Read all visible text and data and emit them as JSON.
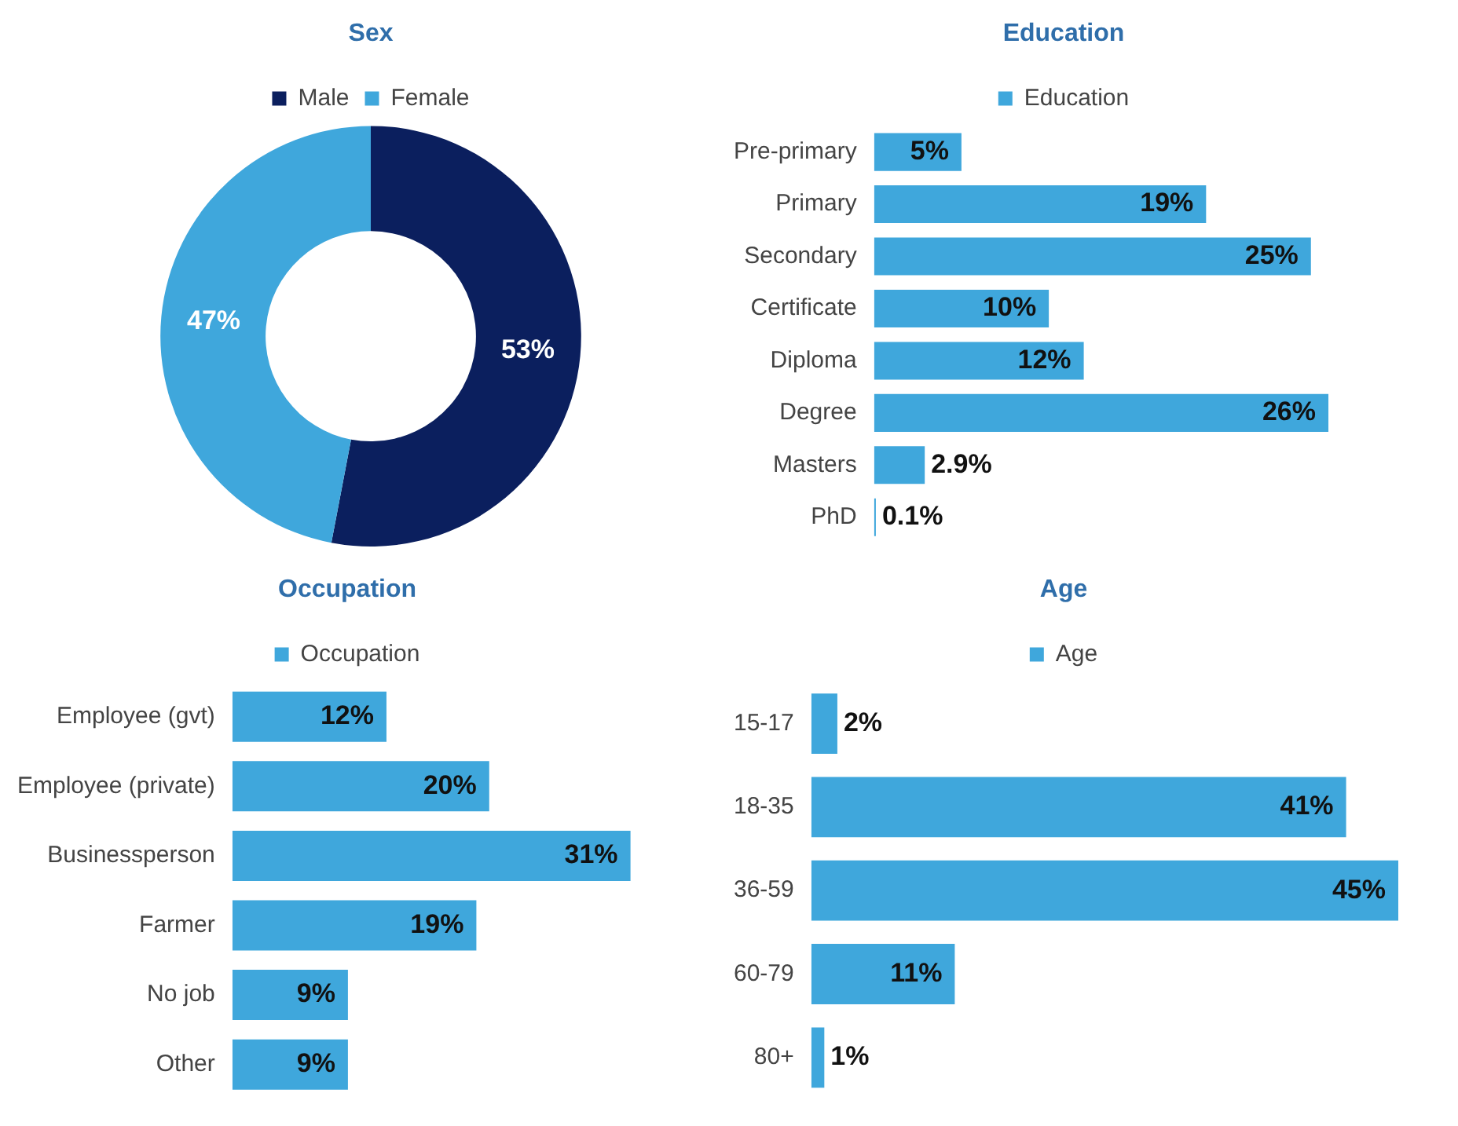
{
  "chart_data": [
    {
      "type": "donut",
      "title": "Sex",
      "categories": [
        "Male",
        "Female"
      ],
      "values": [
        53,
        47
      ],
      "colors": [
        "#0b1f5e",
        "#3fa7dc"
      ],
      "value_labels": [
        "53%",
        "47%"
      ],
      "legend": "top"
    },
    {
      "type": "bar",
      "orientation": "horizontal",
      "title": "Education",
      "categories": [
        "Pre-primary",
        "Primary",
        "Secondary",
        "Certificate",
        "Diploma",
        "Degree",
        "Masters",
        "PhD"
      ],
      "series": [
        {
          "name": "Education",
          "color": "#3fa7dc",
          "values": [
            5,
            19,
            25,
            10,
            12,
            26,
            2.9,
            0.1
          ],
          "value_labels": [
            "5%",
            "19%",
            "25%",
            "10%",
            "12%",
            "26%",
            "2.9%",
            "0.1%"
          ]
        }
      ],
      "legend": "top",
      "tick_labels": "y"
    },
    {
      "type": "bar",
      "orientation": "horizontal",
      "title": "Occupation",
      "categories": [
        "Employee (gvt)",
        "Employee (private)",
        "Businessperson",
        "Farmer",
        "No job",
        "Other"
      ],
      "series": [
        {
          "name": "Occupation",
          "color": "#3fa7dc",
          "values": [
            12,
            20,
            31,
            19,
            9,
            9
          ],
          "value_labels": [
            "12%",
            "20%",
            "31%",
            "19%",
            "9%",
            "9%"
          ]
        }
      ],
      "legend": "top",
      "tick_labels": "y"
    },
    {
      "type": "bar",
      "orientation": "horizontal",
      "title": "Age",
      "categories": [
        "15-17",
        "18-35",
        "36-59",
        "60-79",
        "80+"
      ],
      "series": [
        {
          "name": "Age",
          "color": "#3fa7dc",
          "values": [
            2,
            41,
            45,
            11,
            1
          ],
          "value_labels": [
            "2%",
            "41%",
            "45%",
            "11%",
            "1%"
          ]
        }
      ],
      "legend": "top",
      "tick_labels": "y"
    }
  ]
}
